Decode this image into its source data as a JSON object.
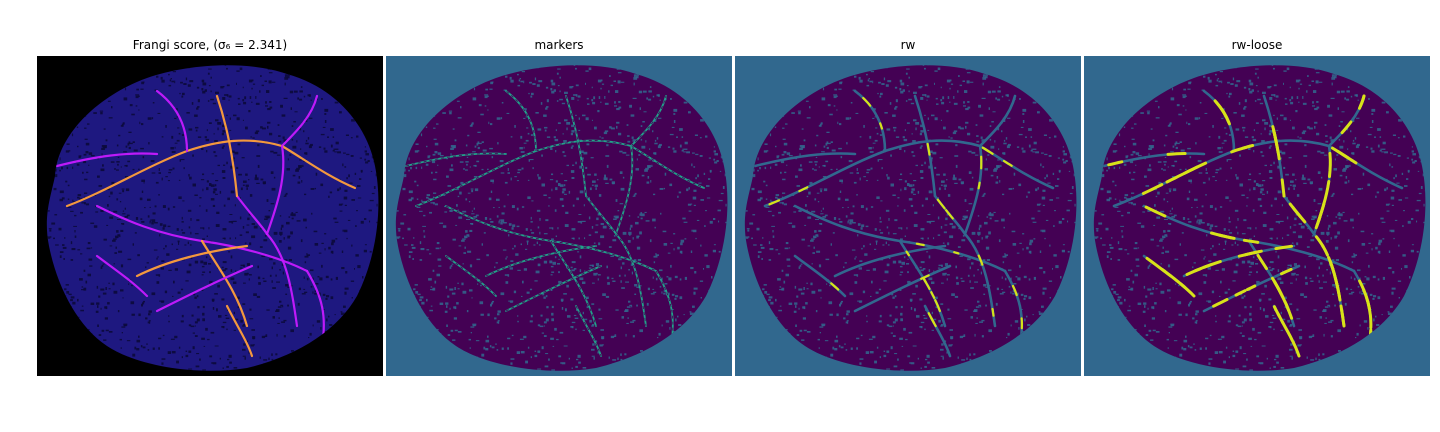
{
  "figure": {
    "panels": [
      {
        "title": "Frangi score, (σ₆ = 2.341)",
        "bg": "#000000",
        "tissue": "#1e1880",
        "tissue_dark": "#0b0a3a",
        "vessel": "#ff9f3a",
        "vessel_alt": "#c61aff"
      },
      {
        "title": "markers",
        "bg": "#31688e",
        "tissue": "#440154",
        "vessel": "#21a38a"
      },
      {
        "title": "rw",
        "bg": "#31688e",
        "tissue": "#440154",
        "vessel": "#31688e",
        "highlight": "#d8e219"
      },
      {
        "title": "rw-loose",
        "bg": "#31688e",
        "tissue": "#440154",
        "vessel": "#31688e",
        "highlight": "#d8e219"
      }
    ]
  }
}
